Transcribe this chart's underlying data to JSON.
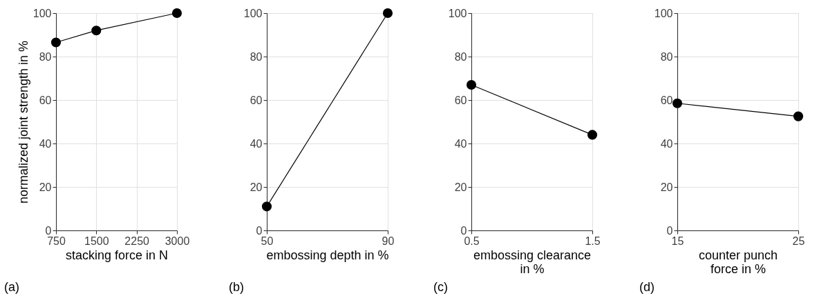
{
  "chart_data": [
    {
      "type": "line",
      "xlabel": "stacking force in N",
      "ylabel": "normalized joint strength in %",
      "annotations": [
        "(a)"
      ],
      "x": [
        750,
        1500,
        3000
      ],
      "series": [
        {
          "color": "#000000",
          "values": [
            86.5,
            92,
            100
          ]
        }
      ],
      "xlim": [
        750,
        3000
      ],
      "xticks": [
        750,
        1500,
        2250,
        3000
      ],
      "ylim": [
        0,
        100
      ],
      "yticks": [
        0,
        20,
        40,
        60,
        80,
        100
      ],
      "grid": true,
      "marker": "circle",
      "line_style": "solid"
    },
    {
      "type": "line",
      "xlabel": "embossing depth in %",
      "annotations": [
        "(b)"
      ],
      "x": [
        50,
        90
      ],
      "series": [
        {
          "color": "#000000",
          "values": [
            11,
            100
          ]
        }
      ],
      "xlim": [
        50,
        90
      ],
      "xticks": [
        50,
        90
      ],
      "ylim": [
        0,
        100
      ],
      "yticks": [
        0,
        20,
        40,
        60,
        80,
        100
      ],
      "grid": true,
      "marker": "circle",
      "line_style": "solid"
    },
    {
      "type": "line",
      "xlabel": "embossing clearance\nin %",
      "annotations": [
        "(c)"
      ],
      "x": [
        0.5,
        1.5
      ],
      "series": [
        {
          "color": "#000000",
          "values": [
            67,
            44
          ]
        }
      ],
      "xlim": [
        0.5,
        1.5
      ],
      "xticks": [
        0.5,
        1.5
      ],
      "ylim": [
        0,
        100
      ],
      "yticks": [
        0,
        20,
        40,
        60,
        80,
        100
      ],
      "grid": true,
      "marker": "circle",
      "line_style": "solid"
    },
    {
      "type": "line",
      "xlabel": "counter punch\nforce in %",
      "annotations": [
        "(d)"
      ],
      "x": [
        15,
        25
      ],
      "series": [
        {
          "color": "#000000",
          "values": [
            58.5,
            52.5
          ]
        }
      ],
      "xlim": [
        15,
        25
      ],
      "xticks": [
        15,
        25
      ],
      "ylim": [
        0,
        100
      ],
      "yticks": [
        0,
        20,
        40,
        60,
        80,
        100
      ],
      "grid": true,
      "marker": "circle",
      "line_style": "solid"
    }
  ]
}
